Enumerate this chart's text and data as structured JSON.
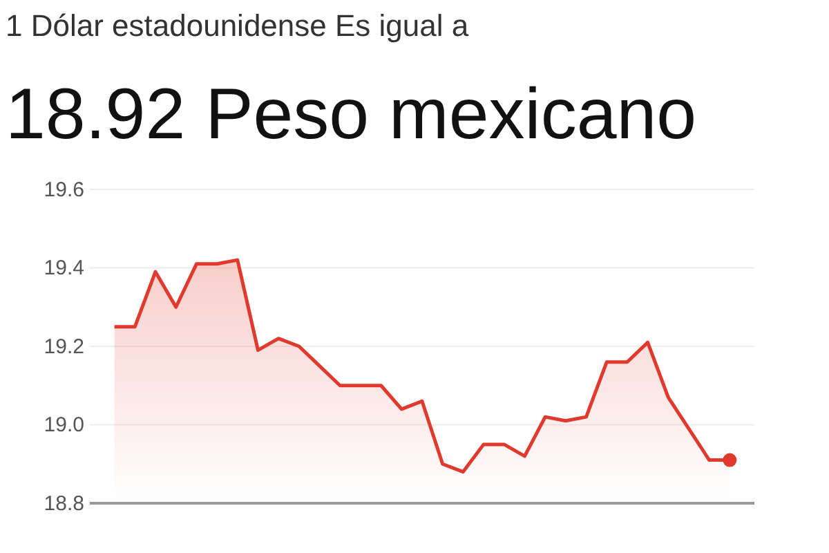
{
  "chart_data": {
    "type": "area",
    "subtitle": "1 Dólar estadounidense Es igual a",
    "title": "18.92 Peso mexicano",
    "categories": [
      null,
      null,
      null,
      null,
      null,
      null,
      null,
      null,
      null,
      null,
      null,
      null,
      null,
      null,
      null,
      null,
      null,
      null,
      null,
      null,
      null,
      null,
      null,
      null,
      null,
      null,
      null,
      null,
      null,
      null,
      null
    ],
    "series": [
      {
        "color": "#e0392e",
        "values": [
          19.25,
          19.25,
          19.39,
          19.3,
          19.41,
          19.41,
          19.42,
          19.19,
          19.22,
          19.2,
          19.15,
          19.1,
          19.1,
          19.1,
          19.04,
          19.06,
          18.9,
          18.88,
          18.95,
          18.95,
          18.92,
          19.02,
          19.01,
          19.02,
          19.16,
          19.16,
          19.21,
          19.07,
          18.99,
          18.91,
          18.91
        ]
      }
    ],
    "ylim": [
      18.8,
      19.6
    ],
    "yticks": [
      {
        "value": 18.8,
        "label": "18.8"
      },
      {
        "value": 19.0,
        "label": "19.0"
      },
      {
        "value": 19.2,
        "label": "19.2"
      },
      {
        "value": 19.4,
        "label": "19.4"
      },
      {
        "value": 19.6,
        "label": "19.6"
      }
    ],
    "grid": "y",
    "tick_labels": "y"
  }
}
